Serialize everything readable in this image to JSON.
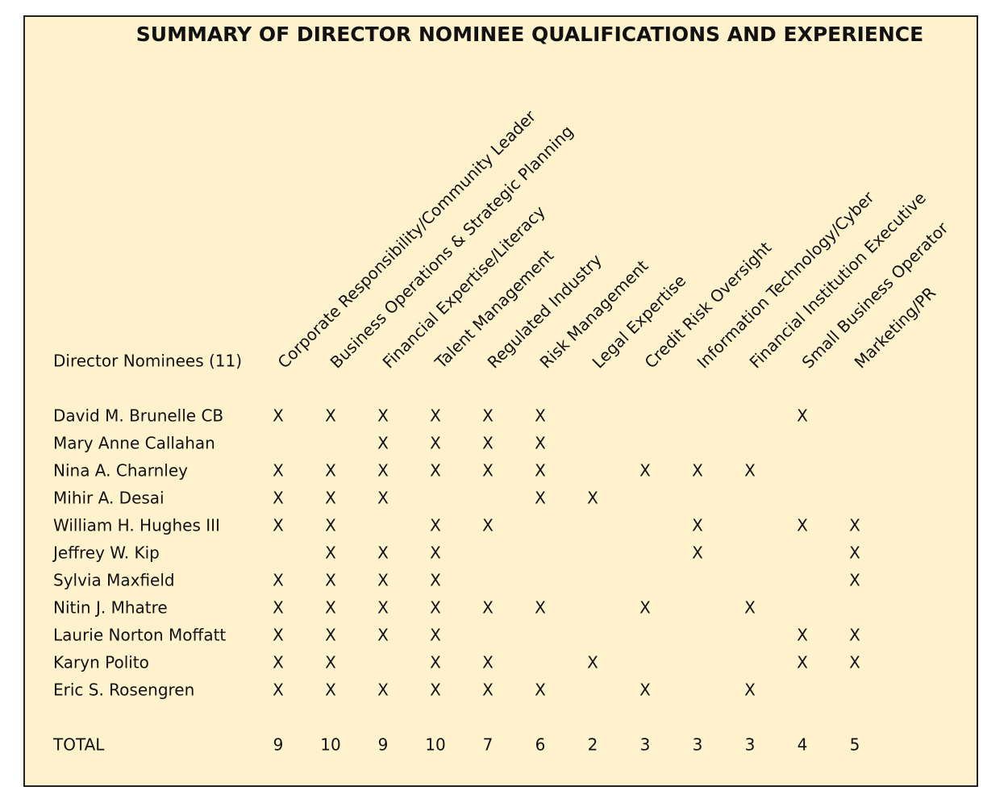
{
  "title": "SUMMARY OF DIRECTOR NOMINEE QUALIFICATIONS AND EXPERIENCE",
  "table": {
    "corner": "Director Nominees (11)",
    "columns": [
      "Corporate Responsibility/Community Leader",
      "Business Operations & Strategic Planning",
      "Financial Expertise/Literacy",
      "Talent Management",
      "Regulated Industry",
      "Risk Management",
      "Legal Expertise",
      "Credit Risk Oversight",
      "Information Technology/Cyber",
      "Financial Institution Executive",
      "Small Business Operator",
      "Marketing/PR"
    ],
    "rows": [
      {
        "name": "David M. Brunelle CB",
        "cells": [
          "X",
          "X",
          "X",
          "X",
          "X",
          "X",
          null,
          null,
          null,
          null,
          "X",
          null
        ]
      },
      {
        "name": "Mary Anne Callahan",
        "cells": [
          null,
          null,
          "X",
          "X",
          "X",
          "X",
          null,
          null,
          null,
          null,
          null,
          null
        ]
      },
      {
        "name": "Nina A. Charnley",
        "cells": [
          "X",
          "X",
          "X",
          "X",
          "X",
          "X",
          null,
          "X",
          "X",
          "X",
          null,
          null
        ]
      },
      {
        "name": "Mihir A. Desai",
        "cells": [
          "X",
          "X",
          "X",
          null,
          null,
          "X",
          "X",
          null,
          null,
          null,
          null,
          null
        ]
      },
      {
        "name": "William H. Hughes III",
        "cells": [
          "X",
          "X",
          null,
          "X",
          "X",
          null,
          null,
          null,
          "X",
          null,
          "X",
          "X"
        ]
      },
      {
        "name": "Jeffrey W. Kip",
        "cells": [
          null,
          "X",
          "X",
          "X",
          null,
          null,
          null,
          null,
          "X",
          null,
          null,
          "X"
        ]
      },
      {
        "name": "Sylvia Maxfield",
        "cells": [
          "X",
          "X",
          "X",
          "X",
          null,
          null,
          null,
          null,
          null,
          null,
          null,
          "X"
        ]
      },
      {
        "name": "Nitin J. Mhatre",
        "cells": [
          "X",
          "X",
          "X",
          "X",
          "X",
          "X",
          null,
          "X",
          null,
          "X",
          null,
          null
        ]
      },
      {
        "name": "Laurie Norton Moffatt",
        "cells": [
          "X",
          "X",
          "X",
          "X",
          null,
          null,
          null,
          null,
          null,
          null,
          "X",
          "X"
        ]
      },
      {
        "name": "Karyn Polito",
        "cells": [
          "X",
          "X",
          null,
          "X",
          "X",
          null,
          "X",
          null,
          null,
          null,
          "X",
          "X"
        ]
      },
      {
        "name": "Eric S. Rosengren",
        "cells": [
          "X",
          "X",
          "X",
          "X",
          "X",
          "X",
          null,
          "X",
          null,
          "X",
          null,
          null
        ]
      }
    ],
    "total": {
      "label": "TOTAL",
      "values": [
        9,
        10,
        9,
        10,
        7,
        6,
        2,
        3,
        3,
        3,
        4,
        5
      ]
    }
  }
}
